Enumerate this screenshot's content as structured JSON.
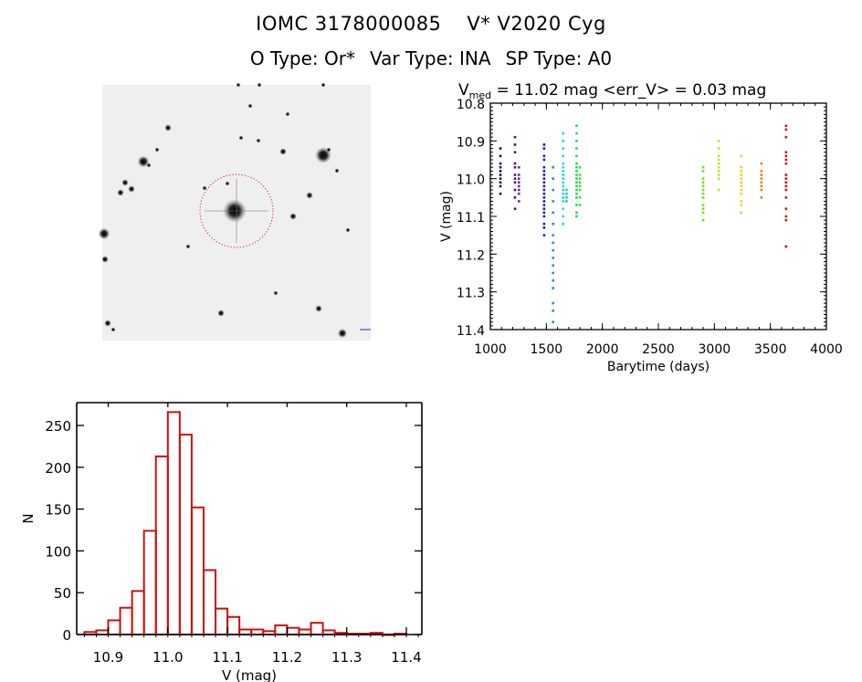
{
  "header": {
    "object_id": "IOMC 3178000085",
    "object_name": "V* V2020 Cyg",
    "o_type": "O Type: Or*",
    "var_type": "Var Type: INA",
    "sp_type": "SP Type: A0"
  },
  "sky_image": {
    "description_icon": "star-field-image",
    "target_marker_color": "#cc2222"
  },
  "chart_data": [
    {
      "type": "scatter",
      "title_prefix": "V",
      "title_subscript": "med",
      "title_rest": " = 11.02 mag <err_V> = 0.03 mag",
      "xlabel": "Barytime (days)",
      "ylabel": "V (mag)",
      "xlim": [
        1000,
        4000
      ],
      "ylim": [
        11.4,
        10.8
      ],
      "y_inverted": true,
      "xticks": [
        "1000",
        "1500",
        "2000",
        "2500",
        "3000",
        "3500",
        "4000"
      ],
      "yticks": [
        "10.8",
        "10.9",
        "11.0",
        "11.1",
        "11.2",
        "11.3",
        "11.4"
      ],
      "grid": false,
      "series": [
        {
          "name": "epoch-1",
          "color": "#2a1040",
          "x": 1090,
          "vmin": 10.92,
          "vmax": 11.04,
          "points": [
            10.92,
            10.94,
            10.96,
            10.97,
            10.98,
            10.99,
            11.0,
            11.01,
            11.02,
            11.04
          ]
        },
        {
          "name": "epoch-2",
          "color": "#4a1a6a",
          "x": 1220,
          "vmin": 10.89,
          "vmax": 11.08,
          "points": [
            10.89,
            10.91,
            10.93,
            10.96,
            10.97,
            10.99,
            11.0,
            11.01,
            11.03,
            11.05,
            11.08
          ]
        },
        {
          "name": "epoch-3",
          "color": "#6a2aa0",
          "x": 1255,
          "vmin": 10.97,
          "vmax": 11.06,
          "points": [
            10.97,
            10.99,
            11.0,
            11.01,
            11.02,
            11.03,
            11.04,
            11.06
          ]
        },
        {
          "name": "epoch-4",
          "color": "#1a20c0",
          "x": 1480,
          "vmin": 10.91,
          "vmax": 11.15,
          "points": [
            10.91,
            10.92,
            10.94,
            10.95,
            10.97,
            10.98,
            10.99,
            11.0,
            11.01,
            11.02,
            11.03,
            11.04,
            11.05,
            11.06,
            11.07,
            11.08,
            11.09,
            11.1,
            11.12,
            11.13,
            11.15
          ]
        },
        {
          "name": "epoch-5",
          "color": "#2a8ad0",
          "x": 1560,
          "vmin": 10.97,
          "vmax": 11.38,
          "points": [
            10.97,
            11.0,
            11.03,
            11.06,
            11.09,
            11.12,
            11.15,
            11.17,
            11.19,
            11.21,
            11.23,
            11.25,
            11.27,
            11.29,
            11.33,
            11.35,
            11.38
          ]
        },
        {
          "name": "epoch-6",
          "color": "#20d8e8",
          "x": 1650,
          "vmin": 10.88,
          "vmax": 11.12,
          "points": [
            10.88,
            10.9,
            10.92,
            10.94,
            10.96,
            10.97,
            10.98,
            10.99,
            11.0,
            11.01,
            11.02,
            11.03,
            11.04,
            11.05,
            11.06,
            11.08,
            11.1,
            11.12
          ]
        },
        {
          "name": "epoch-7",
          "color": "#20c8a8",
          "x": 1680,
          "vmin": 11.03,
          "vmax": 11.06,
          "points": [
            11.03,
            11.04,
            11.05,
            11.06
          ]
        },
        {
          "name": "epoch-8",
          "color": "#20d860",
          "x": 1770,
          "vmin": 10.86,
          "vmax": 11.1,
          "points": [
            10.86,
            10.88,
            10.9,
            10.92,
            10.94,
            10.96,
            10.97,
            10.98,
            10.99,
            11.0,
            11.01,
            11.02,
            11.03,
            11.04,
            11.05,
            11.07,
            11.09,
            11.1
          ]
        },
        {
          "name": "epoch-9",
          "color": "#40e040",
          "x": 1800,
          "vmin": 10.97,
          "vmax": 11.07,
          "points": [
            10.97,
            10.99,
            11.0,
            11.01,
            11.02,
            11.03,
            11.05,
            11.07
          ]
        },
        {
          "name": "epoch-10",
          "color": "#70e020",
          "x": 2900,
          "vmin": 10.97,
          "vmax": 11.11,
          "points": [
            10.97,
            10.98,
            11.0,
            11.01,
            11.02,
            11.03,
            11.04,
            11.05,
            11.07,
            11.08,
            11.09,
            11.11
          ]
        },
        {
          "name": "epoch-11",
          "color": "#b8e830",
          "x": 3040,
          "vmin": 10.9,
          "vmax": 11.03,
          "points": [
            10.9,
            10.92,
            10.94,
            10.95,
            10.96,
            10.97,
            10.98,
            10.99,
            11.0,
            11.03
          ]
        },
        {
          "name": "epoch-12",
          "color": "#f0d020",
          "x": 3240,
          "vmin": 10.94,
          "vmax": 11.09,
          "points": [
            10.94,
            10.97,
            10.98,
            10.99,
            11.0,
            11.01,
            11.02,
            11.03,
            11.04,
            11.06,
            11.07,
            11.09
          ]
        },
        {
          "name": "epoch-13",
          "color": "#e88020",
          "x": 3420,
          "vmin": 10.96,
          "vmax": 11.05,
          "points": [
            10.96,
            10.98,
            10.99,
            11.0,
            11.01,
            11.02,
            11.03,
            11.05
          ]
        },
        {
          "name": "epoch-14",
          "color": "#c81818",
          "x": 3640,
          "vmin": 10.86,
          "vmax": 11.18,
          "points": [
            10.86,
            10.87,
            10.89,
            10.93,
            10.94,
            10.95,
            10.96,
            10.99,
            11.0,
            11.01,
            11.02,
            11.03,
            11.05,
            11.08,
            11.1,
            11.11,
            11.18
          ]
        }
      ]
    },
    {
      "type": "bar",
      "subtype": "histogram",
      "xlabel": "V (mag)",
      "ylabel": "N",
      "xlim": [
        10.85,
        11.42
      ],
      "ylim": [
        0,
        278
      ],
      "xticks": [
        "10.9",
        "11.0",
        "11.1",
        "11.2",
        "11.3",
        "11.4"
      ],
      "yticks": [
        "0",
        "50",
        "100",
        "150",
        "200",
        "250"
      ],
      "bin_width": 0.02,
      "bin_left_edges": [
        10.86,
        10.88,
        10.9,
        10.92,
        10.94,
        10.96,
        10.98,
        11.0,
        11.02,
        11.04,
        11.06,
        11.08,
        11.1,
        11.12,
        11.14,
        11.16,
        11.18,
        11.2,
        11.22,
        11.24,
        11.26,
        11.28,
        11.3,
        11.32,
        11.34,
        11.36,
        11.38
      ],
      "values": [
        3,
        5,
        17,
        32,
        52,
        124,
        213,
        266,
        239,
        152,
        77,
        31,
        21,
        6,
        6,
        4,
        11,
        8,
        6,
        14,
        5,
        2,
        1,
        1,
        2,
        0,
        1
      ],
      "bar_color": "#cc1111",
      "grid": false
    }
  ]
}
